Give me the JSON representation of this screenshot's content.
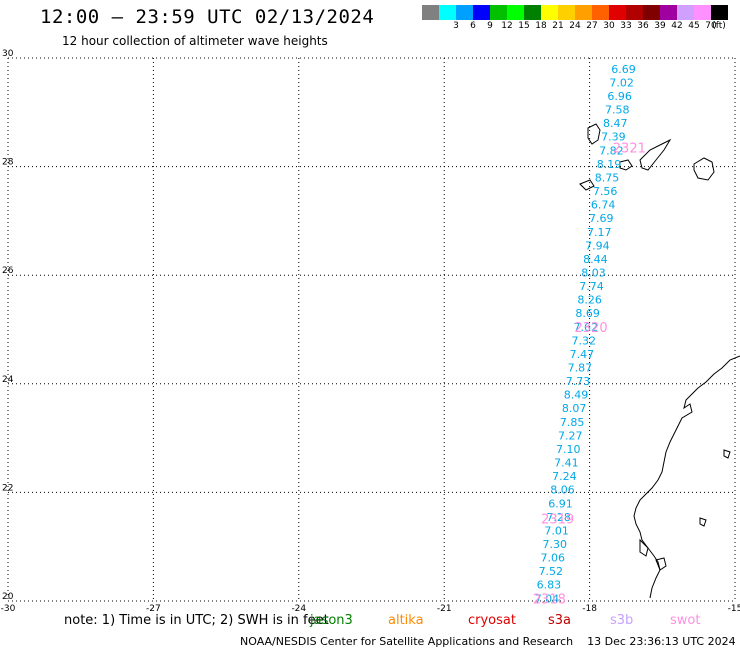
{
  "header": {
    "title": "12:00 – 23:59 UTC 02/13/2024",
    "subtitle": "12 hour collection of altimeter wave heights"
  },
  "legend": {
    "unit": "(ft)",
    "items": [
      {
        "color": "#808080",
        "label": ""
      },
      {
        "color": "#00ffff",
        "label": "3"
      },
      {
        "color": "#00a0ff",
        "label": "6"
      },
      {
        "color": "#0000ff",
        "label": "9"
      },
      {
        "color": "#00c000",
        "label": "12"
      },
      {
        "color": "#00ff00",
        "label": "15"
      },
      {
        "color": "#008000",
        "label": "18"
      },
      {
        "color": "#ffff00",
        "label": "21"
      },
      {
        "color": "#ffd000",
        "label": "24"
      },
      {
        "color": "#ffa000",
        "label": "27"
      },
      {
        "color": "#ff6000",
        "label": "30"
      },
      {
        "color": "#e00000",
        "label": "33"
      },
      {
        "color": "#b00000",
        "label": "36"
      },
      {
        "color": "#800000",
        "label": "39"
      },
      {
        "color": "#a000a0",
        "label": "42"
      },
      {
        "color": "#d0a0ff",
        "label": "45"
      },
      {
        "color": "#ff90ff",
        "label": "70"
      },
      {
        "color": "#000000",
        "label": ""
      }
    ]
  },
  "map": {
    "lat_range": [
      20,
      30
    ],
    "lon_range": [
      -30,
      -15
    ],
    "lat_labels": [
      "30",
      "28",
      "26",
      "24",
      "22",
      "20"
    ],
    "lat_values": [
      30,
      28,
      26,
      24,
      22,
      20
    ],
    "lon_labels": [
      "-30",
      "-27",
      "-24",
      "-21",
      "-18",
      "-15"
    ],
    "lon_values": [
      -30,
      -27,
      -24,
      -21,
      -18,
      -15
    ],
    "wave_color": "#00a8e8",
    "time_color": "#ff90e0",
    "heights": [
      {
        "lon": -17.3,
        "lat": 29.8,
        "value": "6.69"
      },
      {
        "lon": -17.34,
        "lat": 29.55,
        "value": "7.02"
      },
      {
        "lon": -17.38,
        "lat": 29.3,
        "value": "6.96"
      },
      {
        "lon": -17.43,
        "lat": 29.05,
        "value": "7.58"
      },
      {
        "lon": -17.47,
        "lat": 28.8,
        "value": "8.47"
      },
      {
        "lon": -17.51,
        "lat": 28.55,
        "value": "7.39"
      },
      {
        "lon": -17.55,
        "lat": 28.3,
        "value": "7.82"
      },
      {
        "lon": -17.6,
        "lat": 28.05,
        "value": "8.19"
      },
      {
        "lon": -17.64,
        "lat": 27.8,
        "value": "8.75"
      },
      {
        "lon": -17.68,
        "lat": 27.55,
        "value": "7.56"
      },
      {
        "lon": -17.72,
        "lat": 27.3,
        "value": "6.74"
      },
      {
        "lon": -17.76,
        "lat": 27.05,
        "value": "7.69"
      },
      {
        "lon": -17.8,
        "lat": 26.8,
        "value": "7.17"
      },
      {
        "lon": -17.84,
        "lat": 26.55,
        "value": "7.94"
      },
      {
        "lon": -17.88,
        "lat": 26.3,
        "value": "8.44"
      },
      {
        "lon": -17.92,
        "lat": 26.05,
        "value": "8.03"
      },
      {
        "lon": -17.96,
        "lat": 25.8,
        "value": "7.74"
      },
      {
        "lon": -18.0,
        "lat": 25.55,
        "value": "8.26"
      },
      {
        "lon": -18.04,
        "lat": 25.3,
        "value": "8.69"
      },
      {
        "lon": -18.08,
        "lat": 25.05,
        "value": "7.62"
      },
      {
        "lon": -18.12,
        "lat": 24.8,
        "value": "7.32"
      },
      {
        "lon": -18.16,
        "lat": 24.55,
        "value": "7.47"
      },
      {
        "lon": -18.2,
        "lat": 24.3,
        "value": "7.87"
      },
      {
        "lon": -18.24,
        "lat": 24.05,
        "value": "7.73"
      },
      {
        "lon": -18.28,
        "lat": 23.8,
        "value": "8.49"
      },
      {
        "lon": -18.32,
        "lat": 23.55,
        "value": "8.07"
      },
      {
        "lon": -18.36,
        "lat": 23.3,
        "value": "7.85"
      },
      {
        "lon": -18.4,
        "lat": 23.05,
        "value": "7.27"
      },
      {
        "lon": -18.44,
        "lat": 22.8,
        "value": "7.10"
      },
      {
        "lon": -18.48,
        "lat": 22.55,
        "value": "7.41"
      },
      {
        "lon": -18.52,
        "lat": 22.3,
        "value": "7.24"
      },
      {
        "lon": -18.56,
        "lat": 22.05,
        "value": "8.06"
      },
      {
        "lon": -18.6,
        "lat": 21.8,
        "value": "6.91"
      },
      {
        "lon": -18.64,
        "lat": 21.55,
        "value": "7.28"
      },
      {
        "lon": -18.68,
        "lat": 21.3,
        "value": "7.01"
      },
      {
        "lon": -18.72,
        "lat": 21.05,
        "value": "7.30"
      },
      {
        "lon": -18.76,
        "lat": 20.8,
        "value": "7.06"
      },
      {
        "lon": -18.8,
        "lat": 20.55,
        "value": "7.52"
      },
      {
        "lon": -18.84,
        "lat": 20.3,
        "value": "6.83"
      },
      {
        "lon": -18.88,
        "lat": 20.05,
        "value": "7.04"
      }
    ],
    "times": [
      {
        "lon": -17.18,
        "lat": 28.35,
        "value": "2321"
      },
      {
        "lon": -17.97,
        "lat": 25.05,
        "value": "2320"
      },
      {
        "lon": -18.66,
        "lat": 21.52,
        "value": "2319"
      },
      {
        "lon": -18.83,
        "lat": 20.05,
        "value": "2318"
      }
    ]
  },
  "note": "note: 1) Time is in UTC; 2) SWH is in feet",
  "missions": [
    {
      "label": "jason3",
      "color": "#008000"
    },
    {
      "label": "altika",
      "color": "#ff8c00"
    },
    {
      "label": "cryosat",
      "color": "#e00000"
    },
    {
      "label": "s3a",
      "color": "#c00000"
    },
    {
      "label": "s3b",
      "color": "#c8a0ff"
    },
    {
      "label": "swot",
      "color": "#ff90e0"
    }
  ],
  "footer": "NOAA/NESDIS Center for Satellite Applications and Research    13 Dec 23:36:13 UTC 2024"
}
